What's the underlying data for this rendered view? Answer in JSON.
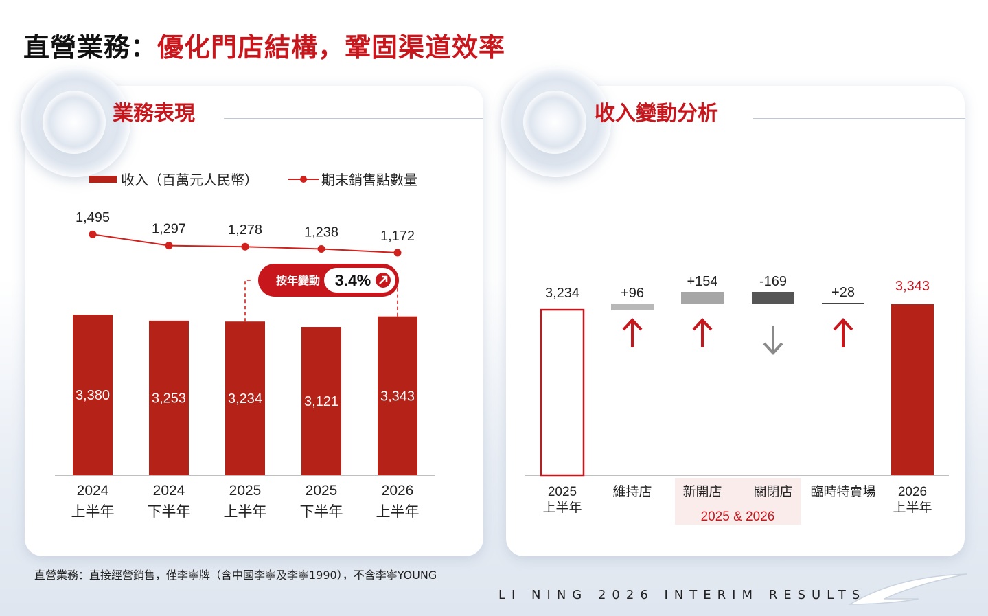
{
  "header": {
    "title_prefix": "直營業務：",
    "title_main": "優化門店結構，鞏固渠道效率"
  },
  "left_panel": {
    "title": "業務表現",
    "legend_revenue": "收入（百萬元人民幣）",
    "legend_stores": "期末銷售點數量",
    "yoy_label": "按年變動",
    "yoy_value": "3.4%"
  },
  "right_panel": {
    "title": "收入變動分析",
    "group_label": "2025 & 2026"
  },
  "footnote": "直營業務：直接經營銷售，僅李寧牌（含中國李寧及李寧1990），不含李寧YOUNG",
  "brand": "LI NING 2026 INTERIM RESULTS",
  "colors": {
    "accent_red": "#c8161d",
    "bar_red": "#b42218",
    "line_red": "#d0211d",
    "light_gray": "#b8b8b8",
    "mid_gray": "#a0a0a0",
    "dark_gray": "#555555",
    "highlight_bg": "#fbecec"
  },
  "chart_data": [
    {
      "type": "bar",
      "title": "業務表現",
      "categories": [
        [
          "2024",
          "上半年"
        ],
        [
          "2024",
          "下半年"
        ],
        [
          "2025",
          "上半年"
        ],
        [
          "2025",
          "下半年"
        ],
        [
          "2026",
          "上半年"
        ]
      ],
      "series": [
        {
          "name": "收入（百萬元人民幣）",
          "type": "bar",
          "values": [
            3380,
            3253,
            3234,
            3121,
            3343
          ],
          "labels": [
            "3,380",
            "3,253",
            "3,234",
            "3,121",
            "3,343"
          ]
        },
        {
          "name": "期末銷售點數量",
          "type": "line",
          "values": [
            1495,
            1297,
            1278,
            1238,
            1172
          ],
          "labels": [
            "1,495",
            "1,297",
            "1,278",
            "1,238",
            "1,172"
          ]
        }
      ],
      "annotation": {
        "text": "按年變動 3.4%",
        "from_index": 2,
        "to_index": 4
      },
      "legend": "top-left"
    },
    {
      "type": "bar",
      "subtype": "waterfall",
      "title": "收入變動分析",
      "categories": [
        [
          "2025",
          "上半年"
        ],
        [
          "維持店"
        ],
        [
          "新開店"
        ],
        [
          "關閉店"
        ],
        [
          "臨時特賣場"
        ],
        [
          "2026",
          "上半年"
        ]
      ],
      "values": [
        3234,
        96,
        154,
        -169,
        28,
        3343
      ],
      "labels": [
        "3,234",
        "+96",
        "+154",
        "-169",
        "+28",
        "3,343"
      ],
      "direction": [
        "total",
        "up",
        "up",
        "down",
        "up",
        "total"
      ],
      "grouped": {
        "label": "2025 & 2026",
        "indices": [
          2,
          3
        ]
      }
    }
  ]
}
